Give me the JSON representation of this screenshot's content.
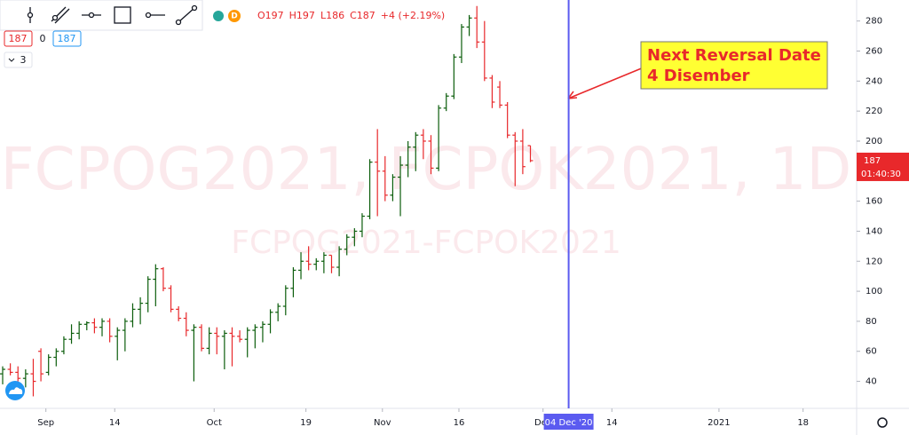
{
  "chart_data": {
    "type": "ohlc",
    "x": [
      "2020-08-24",
      "2020-08-25",
      "2020-08-26",
      "2020-08-27",
      "2020-08-28",
      "2020-08-31",
      "2020-09-01",
      "2020-09-02",
      "2020-09-03",
      "2020-09-04",
      "2020-09-07",
      "2020-09-08",
      "2020-09-09",
      "2020-09-10",
      "2020-09-11",
      "2020-09-14",
      "2020-09-15",
      "2020-09-16",
      "2020-09-17",
      "2020-09-18",
      "2020-09-21",
      "2020-09-22",
      "2020-09-23",
      "2020-09-24",
      "2020-09-25",
      "2020-09-28",
      "2020-09-29",
      "2020-09-30",
      "2020-10-01",
      "2020-10-02",
      "2020-10-05",
      "2020-10-06",
      "2020-10-07",
      "2020-10-08",
      "2020-10-09",
      "2020-10-12",
      "2020-10-13",
      "2020-10-14",
      "2020-10-15",
      "2020-10-16",
      "2020-10-19",
      "2020-10-20",
      "2020-10-21",
      "2020-10-22",
      "2020-10-23",
      "2020-10-26",
      "2020-10-27",
      "2020-10-28",
      "2020-10-29",
      "2020-10-30",
      "2020-11-02",
      "2020-11-03",
      "2020-11-04",
      "2020-11-05",
      "2020-11-06",
      "2020-11-09",
      "2020-11-10",
      "2020-11-11",
      "2020-11-12",
      "2020-11-13",
      "2020-11-16",
      "2020-11-17",
      "2020-11-18",
      "2020-11-19",
      "2020-11-20",
      "2020-11-23",
      "2020-11-24",
      "2020-11-25",
      "2020-11-26",
      "2020-11-27"
    ],
    "open": [
      45,
      48,
      46,
      42,
      45,
      60,
      46,
      56,
      60,
      68,
      72,
      78,
      79,
      76,
      80,
      70,
      74,
      80,
      88,
      92,
      108,
      115,
      102,
      88,
      82,
      74,
      76,
      62,
      72,
      70,
      72,
      70,
      68,
      74,
      76,
      78,
      86,
      90,
      102,
      114,
      120,
      118,
      120,
      124,
      116,
      128,
      136,
      140,
      150,
      186,
      180,
      164,
      176,
      184,
      196,
      204,
      200,
      182,
      222,
      230,
      256,
      276,
      282,
      266,
      242,
      236,
      224,
      204,
      200,
      197
    ],
    "high": [
      50,
      52,
      50,
      48,
      55,
      62,
      58,
      62,
      70,
      78,
      80,
      80,
      82,
      82,
      82,
      76,
      82,
      92,
      96,
      110,
      118,
      116,
      104,
      90,
      86,
      78,
      78,
      76,
      76,
      74,
      76,
      74,
      76,
      78,
      80,
      88,
      92,
      104,
      116,
      126,
      130,
      122,
      126,
      124,
      130,
      138,
      142,
      152,
      188,
      208,
      190,
      178,
      190,
      200,
      206,
      208,
      204,
      224,
      232,
      258,
      278,
      284,
      290,
      280,
      244,
      240,
      226,
      206,
      208,
      197
    ],
    "low": [
      38,
      44,
      40,
      36,
      30,
      40,
      44,
      50,
      58,
      65,
      68,
      74,
      72,
      70,
      66,
      54,
      60,
      76,
      78,
      86,
      90,
      100,
      86,
      80,
      70,
      40,
      60,
      58,
      58,
      48,
      50,
      66,
      56,
      62,
      66,
      72,
      80,
      84,
      96,
      108,
      114,
      114,
      112,
      112,
      110,
      124,
      130,
      136,
      148,
      150,
      160,
      160,
      150,
      176,
      180,
      188,
      178,
      180,
      220,
      228,
      252,
      270,
      262,
      240,
      222,
      222,
      202,
      170,
      178,
      186
    ],
    "close": [
      48,
      46,
      42,
      45,
      40,
      45,
      56,
      60,
      68,
      72,
      78,
      79,
      76,
      80,
      70,
      74,
      80,
      88,
      92,
      108,
      115,
      102,
      88,
      82,
      74,
      76,
      62,
      72,
      70,
      72,
      70,
      68,
      74,
      76,
      78,
      86,
      90,
      102,
      114,
      120,
      118,
      120,
      124,
      116,
      128,
      136,
      140,
      150,
      186,
      180,
      164,
      176,
      184,
      196,
      204,
      200,
      182,
      222,
      230,
      256,
      276,
      282,
      266,
      242,
      226,
      224,
      204,
      200,
      183,
      187
    ],
    "up_color": "#0b5d0b",
    "down_color": "#e8282b",
    "xlim": [
      "2020-08-24",
      "2021-01-27"
    ],
    "ylim": [
      22,
      294
    ],
    "yticks": [
      40,
      60,
      80,
      100,
      120,
      140,
      160,
      180,
      200,
      220,
      240,
      260,
      280
    ],
    "xticks": [
      {
        "value": "2020-09-01",
        "label": "Sep"
      },
      {
        "value": "2020-09-14",
        "label": "14"
      },
      {
        "value": "2020-10-01",
        "label": "Oct"
      },
      {
        "value": "2020-10-19",
        "label": "19"
      },
      {
        "value": "2020-11-02",
        "label": "Nov"
      },
      {
        "value": "2020-11-16",
        "label": "16"
      },
      {
        "value": "2020-12-01",
        "label": "Dec"
      },
      {
        "value": "2020-12-14",
        "label": "14"
      },
      {
        "value": "2021-01-01",
        "label": "2021"
      },
      {
        "value": "2021-01-18",
        "label": "18"
      }
    ],
    "watermark": "FCPOG2021, FCPOK2021, 1D",
    "watermark_sub": "FCPOG2021-FCPOK2021",
    "vline": {
      "x": "2020-12-04",
      "label": "04 Dec '20",
      "color": "#5b5bf0"
    },
    "annotation": [
      "Next Reversal Date",
      "4 Disember"
    ],
    "symbol_letter": "D",
    "ohlc_legend": [
      "O197",
      "H197",
      "L186",
      "C187",
      "+4 (+2.19%)"
    ],
    "badges": [
      "187",
      "0",
      "187"
    ],
    "interval_count": "3",
    "countdown": "01:40:30"
  }
}
